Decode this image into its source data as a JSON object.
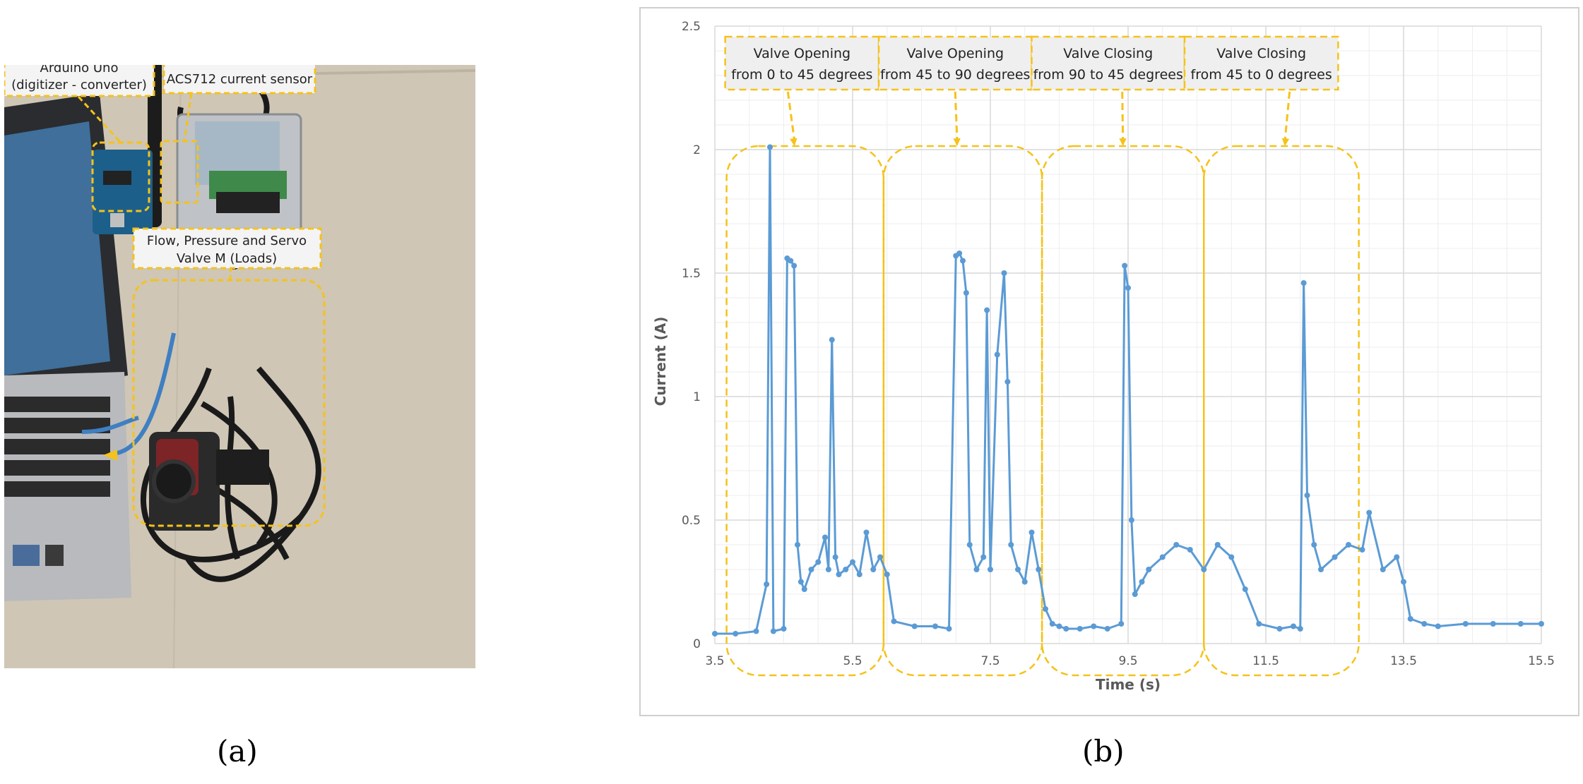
{
  "panels": {
    "a": "(a)",
    "b": "(b)"
  },
  "photo": {
    "labels": {
      "arduino": [
        "Arduino Uno",
        "(digitizer - converter)"
      ],
      "sensor": "ACS712 current sensor",
      "loads": [
        "Flow, Pressure and Servo",
        "Valve M (Loads)"
      ]
    }
  },
  "colors": {
    "series": "#5b9bd5",
    "annotation": "#f5c21a",
    "callout_fill": "#efefef",
    "grid": "#d9d9d9",
    "axis_text": "#595959"
  },
  "chart_data": {
    "type": "line",
    "title": "",
    "xlabel": "Time (s)",
    "ylabel": "Current (A)",
    "xlim": [
      3.5,
      15.5
    ],
    "ylim": [
      0,
      2.5
    ],
    "x_ticks": [
      3.5,
      5.5,
      7.5,
      9.5,
      11.5,
      13.5,
      15.5
    ],
    "x_tick_labels": [
      "3.5",
      "5.5",
      "7.5",
      "9.5",
      "11.5",
      "13.5",
      "15.5"
    ],
    "y_ticks": [
      0,
      0.5,
      1,
      1.5,
      2,
      2.5
    ],
    "y_tick_labels": [
      "0",
      "0.5",
      "1",
      "1.5",
      "2",
      "2.5"
    ],
    "grid": true,
    "series": [
      {
        "name": "Current",
        "x": [
          3.5,
          3.8,
          4.1,
          4.25,
          4.3,
          4.35,
          4.5,
          4.55,
          4.6,
          4.65,
          4.7,
          4.75,
          4.8,
          4.9,
          5.0,
          5.1,
          5.15,
          5.2,
          5.25,
          5.3,
          5.4,
          5.5,
          5.6,
          5.7,
          5.8,
          5.9,
          6.0,
          6.1,
          6.4,
          6.7,
          6.9,
          7.0,
          7.05,
          7.1,
          7.15,
          7.2,
          7.3,
          7.4,
          7.45,
          7.5,
          7.6,
          7.7,
          7.75,
          7.8,
          7.9,
          8.0,
          8.1,
          8.2,
          8.3,
          8.4,
          8.5,
          8.6,
          8.8,
          9.0,
          9.2,
          9.4,
          9.45,
          9.5,
          9.55,
          9.6,
          9.7,
          9.8,
          10.0,
          10.2,
          10.4,
          10.6,
          10.8,
          11.0,
          11.2,
          11.4,
          11.7,
          11.9,
          12.0,
          12.05,
          12.1,
          12.2,
          12.3,
          12.5,
          12.7,
          12.9,
          13.0,
          13.2,
          13.4,
          13.5,
          13.6,
          13.8,
          14.0,
          14.4,
          14.8,
          15.2,
          15.5
        ],
        "y": [
          0.04,
          0.04,
          0.05,
          0.24,
          2.01,
          0.05,
          0.06,
          1.56,
          1.55,
          1.53,
          0.4,
          0.25,
          0.22,
          0.3,
          0.33,
          0.43,
          0.3,
          1.23,
          0.35,
          0.28,
          0.3,
          0.33,
          0.28,
          0.45,
          0.3,
          0.35,
          0.28,
          0.09,
          0.07,
          0.07,
          0.06,
          1.57,
          1.58,
          1.55,
          1.42,
          0.4,
          0.3,
          0.35,
          1.35,
          0.3,
          1.17,
          1.5,
          1.06,
          0.4,
          0.3,
          0.25,
          0.45,
          0.3,
          0.14,
          0.08,
          0.07,
          0.06,
          0.06,
          0.07,
          0.06,
          0.08,
          1.53,
          1.44,
          0.5,
          0.2,
          0.25,
          0.3,
          0.35,
          0.4,
          0.38,
          0.3,
          0.4,
          0.35,
          0.22,
          0.08,
          0.06,
          0.07,
          0.06,
          1.46,
          0.6,
          0.4,
          0.3,
          0.35,
          0.4,
          0.38,
          0.53,
          0.3,
          0.35,
          0.25,
          0.1,
          0.08,
          0.07,
          0.08,
          0.08,
          0.08,
          0.08
        ]
      }
    ],
    "annotations": [
      {
        "lines": [
          "Valve Opening",
          "from 0 to 45 degrees"
        ],
        "x_range": [
          3.65,
          5.88
        ]
      },
      {
        "lines": [
          "Valve Opening",
          "from 45 to 90 degrees"
        ],
        "x_range": [
          5.88,
          8.1
        ]
      },
      {
        "lines": [
          "Valve Closing",
          "from 90 to 45 degrees"
        ],
        "x_range": [
          8.1,
          10.32
        ]
      },
      {
        "lines": [
          "Valve Closing",
          "from 45 to 0 degrees"
        ],
        "x_range": [
          10.32,
          12.55
        ]
      }
    ],
    "regions": [
      {
        "name": "region-opening-0-45",
        "x_range": [
          3.67,
          5.95
        ]
      },
      {
        "name": "region-opening-45-90",
        "x_range": [
          5.95,
          8.25
        ]
      },
      {
        "name": "region-closing-90-45",
        "x_range": [
          8.25,
          10.6
        ]
      },
      {
        "name": "region-closing-45-0",
        "x_range": [
          10.6,
          12.85
        ]
      }
    ]
  }
}
